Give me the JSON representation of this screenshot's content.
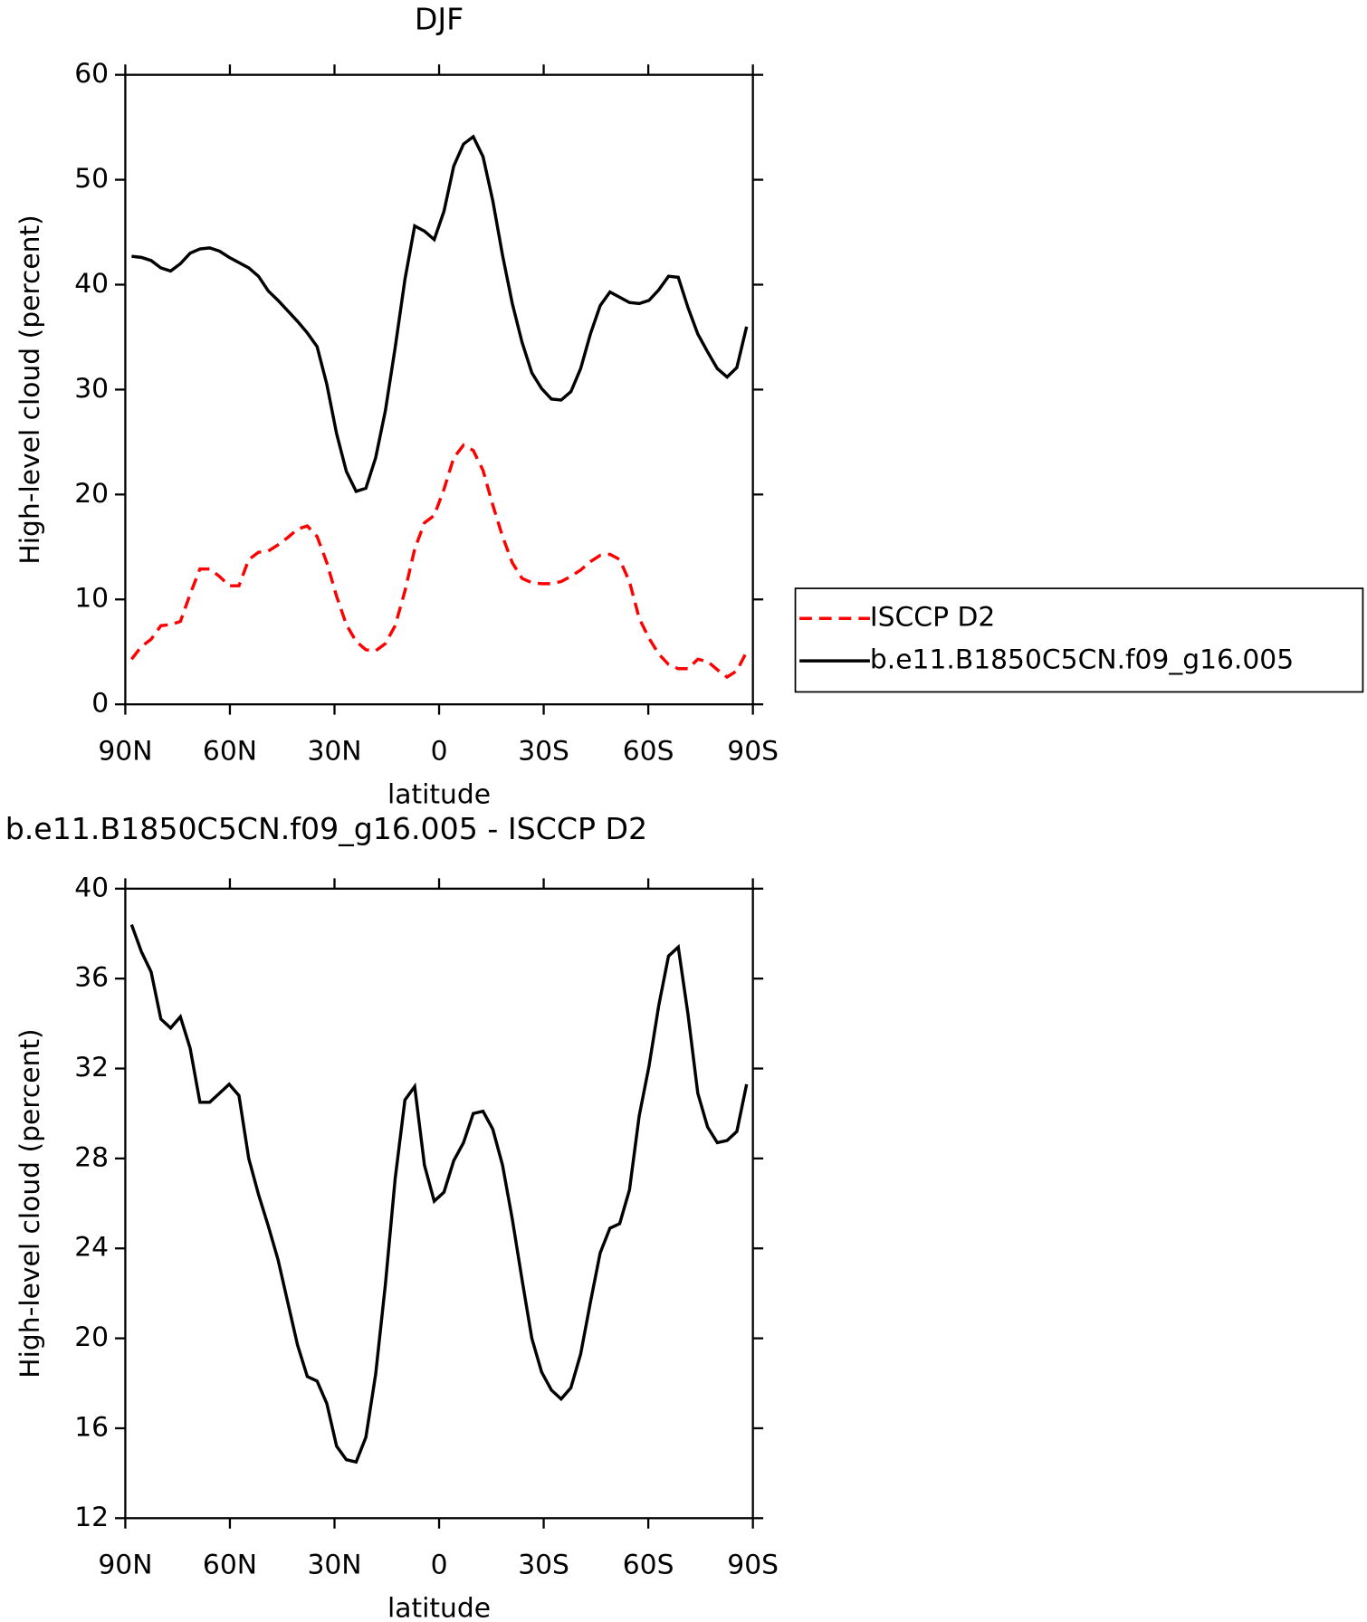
{
  "chart_data": [
    {
      "type": "line",
      "title": "DJF",
      "xlabel": "latitude",
      "ylabel": "High-level cloud (percent)",
      "x": [
        88.2,
        85.4,
        82.6,
        79.8,
        77,
        74.2,
        71.4,
        68.6,
        65.8,
        63,
        60.2,
        57.4,
        54.6,
        51.8,
        49,
        46.2,
        43.4,
        40.6,
        37.8,
        35,
        32.2,
        29.4,
        26.6,
        23.8,
        21,
        18.2,
        15.4,
        12.6,
        9.8,
        7,
        4.2,
        1.4,
        -1.4,
        -4.2,
        -7,
        -9.8,
        -12.6,
        -15.4,
        -18.2,
        -21,
        -23.8,
        -26.6,
        -29.4,
        -32.2,
        -35,
        -37.8,
        -40.6,
        -43.4,
        -46.2,
        -49,
        -51.8,
        -54.6,
        -57.4,
        -60.2,
        -63,
        -65.8,
        -68.6,
        -71.4,
        -74.2,
        -77,
        -79.8,
        -82.6,
        -85.4,
        -88.2
      ],
      "xlim": [
        90,
        -90
      ],
      "xticks": [
        {
          "value": 90,
          "label": "90N"
        },
        {
          "value": 60,
          "label": "60N"
        },
        {
          "value": 30,
          "label": "30N"
        },
        0,
        {
          "value": -30,
          "label": "30S"
        },
        {
          "value": -60,
          "label": "60S"
        },
        {
          "value": -90,
          "label": "90S"
        }
      ],
      "ylim": [
        0,
        60
      ],
      "yticks": [
        0,
        10,
        20,
        30,
        40,
        50,
        60
      ],
      "legend": "outside-right",
      "series": [
        {
          "name": "ISCCP D2",
          "color": "#ff0000",
          "style": "dashed",
          "values": [
            4.3,
            5.5,
            6.2,
            7.5,
            7.6,
            7.9,
            10.5,
            12.9,
            12.9,
            12.2,
            11.3,
            11.3,
            13.8,
            14.5,
            14.6,
            15.2,
            15.9,
            16.7,
            17.0,
            16.0,
            13.5,
            10.3,
            7.6,
            6.0,
            5.2,
            5.1,
            5.8,
            7.5,
            10.8,
            14.8,
            17.3,
            18.0,
            20.5,
            23.5,
            24.7,
            24.2,
            22.3,
            19.0,
            16.0,
            13.5,
            12.0,
            11.6,
            11.5,
            11.5,
            11.7,
            12.2,
            12.8,
            13.6,
            14.2,
            14.3,
            13.8,
            11.7,
            8.2,
            6.3,
            4.8,
            3.8,
            3.4,
            3.4,
            4.3,
            4.1,
            3.3,
            2.6,
            3.2,
            5.0
          ]
        },
        {
          "name": "b.e11.B1850C5CN.f09_g16.005",
          "color": "#000000",
          "style": "solid",
          "values": [
            42.7,
            42.6,
            42.3,
            41.6,
            41.3,
            42.0,
            43.0,
            43.4,
            43.5,
            43.2,
            42.6,
            42.1,
            41.6,
            40.8,
            39.4,
            38.5,
            37.5,
            36.5,
            35.4,
            34.1,
            30.5,
            25.8,
            22.2,
            20.3,
            20.6,
            23.5,
            28.0,
            34.0,
            40.5,
            45.6,
            45.1,
            44.3,
            47.0,
            51.3,
            53.4,
            54.1,
            52.2,
            48.0,
            42.8,
            38.2,
            34.5,
            31.6,
            30.1,
            29.1,
            29.0,
            29.8,
            32.0,
            35.3,
            38.0,
            39.3,
            38.8,
            38.3,
            38.2,
            38.5,
            39.5,
            40.8,
            40.7,
            37.8,
            35.3,
            33.6,
            32.0,
            31.2,
            32.1,
            36.0
          ]
        }
      ]
    },
    {
      "type": "line",
      "title": "b.e11.B1850C5CN.f09_g16.005 - ISCCP D2",
      "xlabel": "latitude",
      "ylabel": "High-level cloud (percent)",
      "x": [
        88.2,
        85.4,
        82.6,
        79.8,
        77,
        74.2,
        71.4,
        68.6,
        65.8,
        63,
        60.2,
        57.4,
        54.6,
        51.8,
        49,
        46.2,
        43.4,
        40.6,
        37.8,
        35,
        32.2,
        29.4,
        26.6,
        23.8,
        21,
        18.2,
        15.4,
        12.6,
        9.8,
        7,
        4.2,
        1.4,
        -1.4,
        -4.2,
        -7,
        -9.8,
        -12.6,
        -15.4,
        -18.2,
        -21,
        -23.8,
        -26.6,
        -29.4,
        -32.2,
        -35,
        -37.8,
        -40.6,
        -43.4,
        -46.2,
        -49,
        -51.8,
        -54.6,
        -57.4,
        -60.2,
        -63,
        -65.8,
        -68.6,
        -71.4,
        -74.2,
        -77,
        -79.8,
        -82.6,
        -85.4,
        -88.2
      ],
      "xlim": [
        90,
        -90
      ],
      "xticks": [
        {
          "value": 90,
          "label": "90N"
        },
        {
          "value": 60,
          "label": "60N"
        },
        {
          "value": 30,
          "label": "30N"
        },
        0,
        {
          "value": -30,
          "label": "30S"
        },
        {
          "value": -60,
          "label": "60S"
        },
        {
          "value": -90,
          "label": "90S"
        }
      ],
      "ylim": [
        12,
        40
      ],
      "yticks": [
        12,
        16,
        20,
        24,
        28,
        32,
        36,
        40
      ],
      "series": [
        {
          "color": "#000000",
          "style": "solid",
          "values": [
            38.4,
            37.2,
            36.3,
            34.2,
            33.8,
            34.3,
            32.9,
            30.5,
            30.5,
            30.9,
            31.3,
            30.8,
            28.0,
            26.4,
            25.0,
            23.5,
            21.6,
            19.7,
            18.3,
            18.1,
            17.1,
            15.2,
            14.6,
            14.5,
            15.6,
            18.4,
            22.4,
            27.1,
            30.6,
            31.2,
            27.7,
            26.1,
            26.5,
            27.9,
            28.7,
            30.0,
            30.1,
            29.3,
            27.7,
            25.3,
            22.6,
            20.0,
            18.5,
            17.7,
            17.3,
            17.8,
            19.3,
            21.6,
            23.8,
            24.9,
            25.1,
            26.6,
            29.9,
            32.1,
            34.8,
            37.0,
            37.4,
            34.4,
            30.9,
            29.4,
            28.7,
            28.8,
            29.2,
            31.3
          ]
        }
      ]
    }
  ]
}
